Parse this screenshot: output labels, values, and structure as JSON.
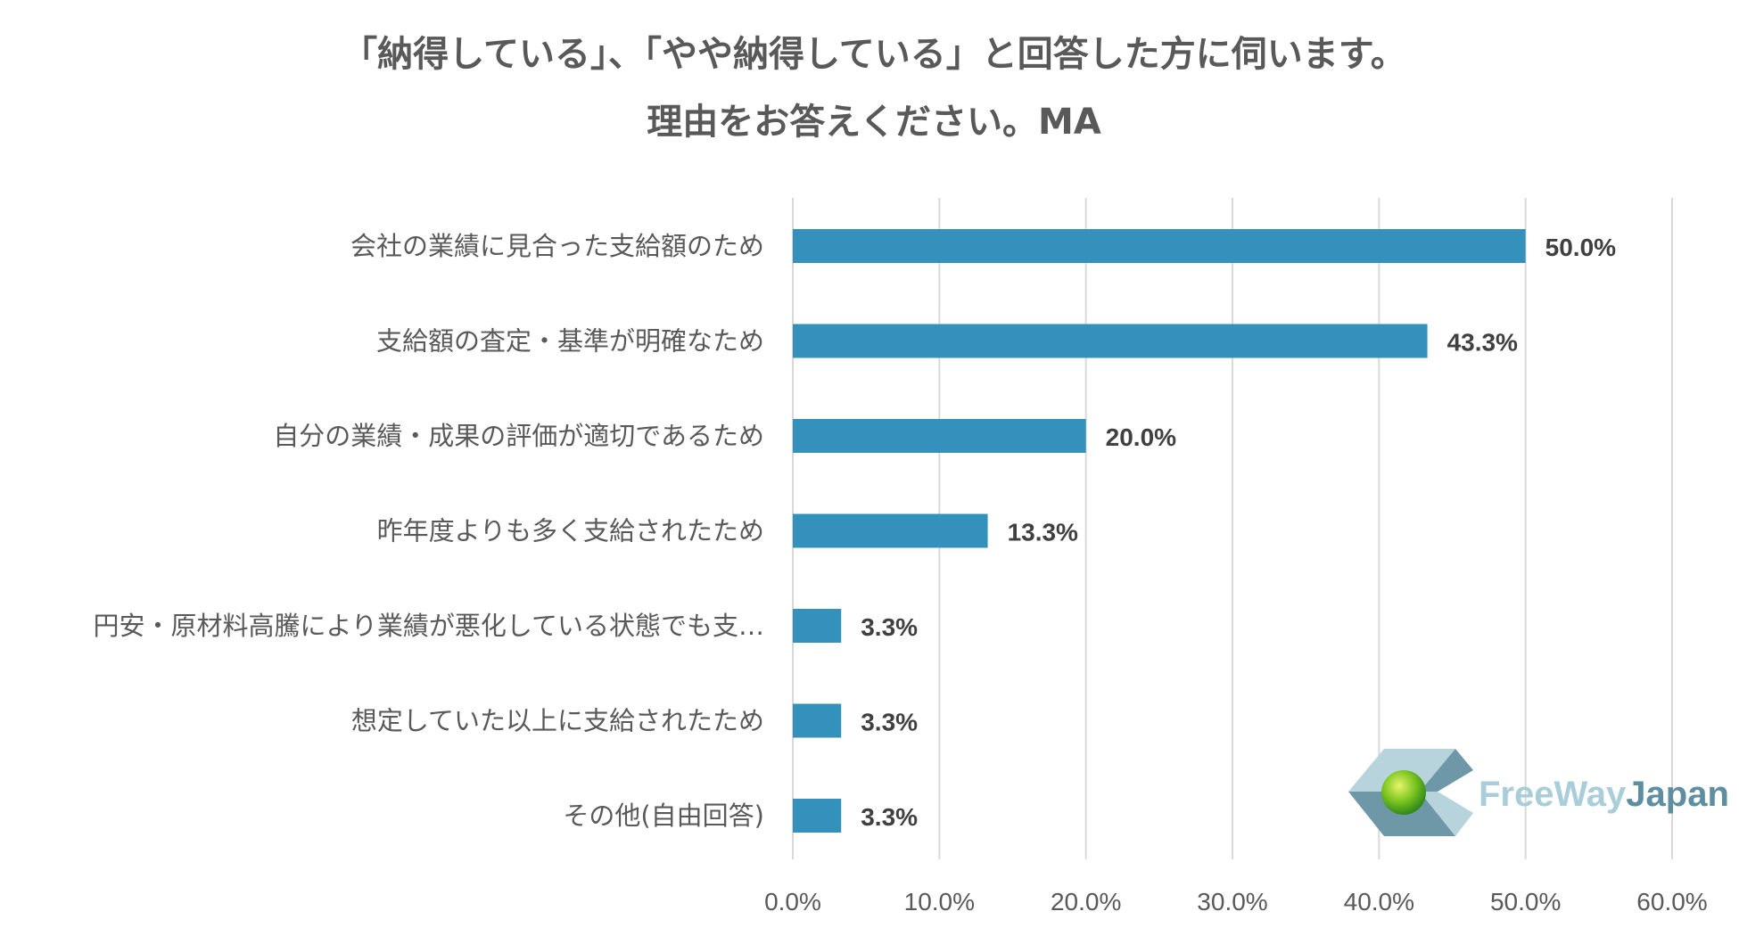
{
  "chart_data": {
    "type": "bar",
    "orientation": "horizontal",
    "title_line1": "「納得している」、「やや納得している」と回答した方に伺います。",
    "title_line2": "理由をお答えください。MA",
    "categories": [
      "会社の業績に見合った支給額のため",
      "支給額の査定・基準が明確なため",
      "自分の業績・成果の評価が適切であるため",
      "昨年度よりも多く支給されたため",
      "円安・原材料高騰により業績が悪化している状態でも支…",
      "想定していた以上に支給されたため",
      "その他(自由回答)"
    ],
    "values": [
      50.0,
      43.3,
      20.0,
      13.3,
      3.3,
      3.3,
      3.3
    ],
    "value_labels": [
      "50.0%",
      "43.3%",
      "20.0%",
      "13.3%",
      "3.3%",
      "3.3%",
      "3.3%"
    ],
    "xlim": [
      0,
      60
    ],
    "ticks": [
      0,
      10,
      20,
      30,
      40,
      50,
      60
    ],
    "tick_labels": [
      "0.0%",
      "10.0%",
      "20.0%",
      "30.0%",
      "40.0%",
      "50.0%",
      "60.0%"
    ],
    "grid": true,
    "bar_color": "#3391bb"
  },
  "logo": {
    "text_part1": "FreeWay",
    "text_part2": "Japan",
    "color_part1": "#a9cdd9",
    "color_part2": "#5f8ea1"
  }
}
